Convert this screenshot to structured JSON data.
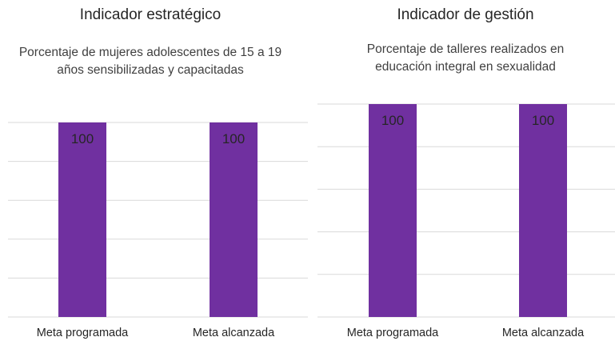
{
  "chart_data": [
    {
      "type": "bar",
      "title": "Indicador estratégico",
      "subtitle": "Porcentaje de mujeres adolescentes de 15 a 19 años sensibilizadas y capacitadas",
      "categories": [
        "Meta programada",
        "Meta alcanzada"
      ],
      "values": [
        100,
        100
      ],
      "color": "#7030a0",
      "ylim": [
        0,
        100
      ],
      "yticks": [
        0,
        20,
        40,
        60,
        80,
        100
      ],
      "grid": true
    },
    {
      "type": "bar",
      "title": "Indicador de gestión",
      "subtitle": "Porcentaje de talleres realizados en educación integral en sexualidad",
      "categories": [
        "Meta programada",
        "Meta alcanzada"
      ],
      "values": [
        100,
        100
      ],
      "color": "#7030a0",
      "ylim": [
        0,
        100
      ],
      "yticks": [
        0,
        20,
        40,
        60,
        80,
        100
      ],
      "grid": true
    }
  ]
}
